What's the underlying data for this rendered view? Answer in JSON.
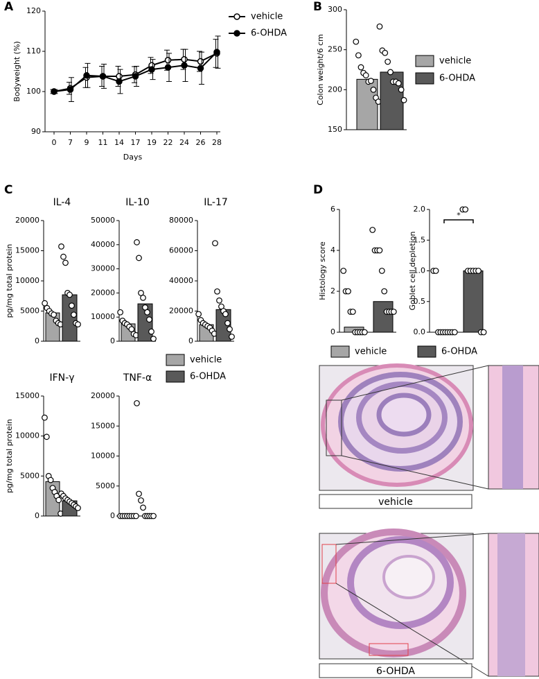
{
  "panels": [
    "A",
    "B",
    "C",
    "D"
  ],
  "images": [
    {
      "label": "vehicle"
    },
    {
      "label": "6-OHDA"
    }
  ],
  "chart_data": [
    {
      "type": "line",
      "ylabel": "Bodyweight (%)",
      "xlabel": "Days",
      "categories": [
        0,
        7,
        9,
        11,
        14,
        17,
        19,
        22,
        24,
        26,
        28
      ],
      "ylim": [
        90,
        120
      ],
      "yticks": [
        90,
        100,
        110,
        120
      ],
      "series": [
        {
          "name": "vehicle",
          "color": "#000000",
          "marker": "open",
          "values": [
            100,
            100.8,
            103.5,
            103.8,
            103.8,
            104.2,
            106.5,
            107.8,
            108,
            107.5,
            109.5
          ],
          "errors": [
            0.5,
            1.5,
            2.5,
            2.5,
            2.5,
            2,
            2,
            2.5,
            2.5,
            2.5,
            3.5
          ]
        },
        {
          "name": "6-OHDA",
          "color": "#000000",
          "marker": "filled",
          "values": [
            100,
            100.5,
            104,
            103.8,
            102.5,
            103.8,
            105.5,
            106,
            106.5,
            105.8,
            109.8
          ],
          "errors": [
            0.5,
            3,
            3,
            3,
            3,
            2.5,
            2.5,
            3.5,
            4,
            4,
            4
          ]
        }
      ]
    },
    {
      "type": "bar_scatter",
      "ylabel": "Colon weight/6 cm",
      "ylim": [
        150,
        300
      ],
      "yticks": [
        150,
        200,
        250,
        300
      ],
      "legend": true,
      "series": [
        {
          "name": "vehicle",
          "color": "#a6a6a6",
          "value": 213,
          "points": [
            260,
            243,
            228,
            221,
            218,
            210,
            211,
            200,
            190,
            185
          ]
        },
        {
          "name": "6-OHDA",
          "color": "#595959",
          "value": 222,
          "points": [
            279,
            249,
            246,
            235,
            222,
            210,
            210,
            208,
            200,
            187
          ]
        }
      ]
    },
    {
      "type": "bar_scatter",
      "title": "IL-4",
      "ylabel": "pg/mg total protein",
      "ylim": [
        0,
        20000
      ],
      "yticks": [
        0,
        5000,
        10000,
        15000,
        20000
      ],
      "legend": true,
      "series": [
        {
          "name": "vehicle",
          "color": "#a6a6a6",
          "value": 4700,
          "points": [
            6300,
            5500,
            5000,
            4600,
            4400,
            3400,
            3000,
            2800
          ]
        },
        {
          "name": "6-OHDA",
          "color": "#595959",
          "value": 7700,
          "points": [
            15700,
            14000,
            13000,
            8000,
            7700,
            5900,
            4400,
            3000,
            2800
          ]
        }
      ]
    },
    {
      "type": "bar_scatter",
      "title": "IL-10",
      "ylim": [
        0,
        50000
      ],
      "yticks": [
        0,
        10000,
        20000,
        30000,
        40000,
        50000
      ],
      "series": [
        {
          "name": "vehicle",
          "color": "#a6a6a6",
          "value": 7200,
          "points": [
            12000,
            8500,
            7500,
            7000,
            6000,
            5000,
            3000,
            2500
          ]
        },
        {
          "name": "6-OHDA",
          "color": "#595959",
          "value": 15500,
          "points": [
            41000,
            34500,
            20000,
            18000,
            14000,
            12000,
            9000,
            4000,
            1000
          ]
        }
      ]
    },
    {
      "type": "bar_scatter",
      "title": "IL-17",
      "ylim": [
        0,
        80000
      ],
      "yticks": [
        0,
        20000,
        40000,
        60000,
        80000
      ],
      "series": [
        {
          "name": "vehicle",
          "color": "#a6a6a6",
          "value": 11000,
          "points": [
            18000,
            14000,
            12000,
            11000,
            10000,
            9000,
            7000,
            5000
          ]
        },
        {
          "name": "6-OHDA",
          "color": "#595959",
          "value": 21000,
          "points": [
            65000,
            33000,
            27000,
            23000,
            20000,
            18000,
            12000,
            8000,
            3000
          ]
        }
      ]
    },
    {
      "type": "bar_scatter",
      "title": "IFN-γ",
      "ylabel": "pg/mg total protein",
      "ylim": [
        0,
        15000
      ],
      "yticks": [
        0,
        5000,
        10000,
        15000
      ],
      "series": [
        {
          "name": "vehicle",
          "color": "#a6a6a6",
          "value": 4300,
          "points": [
            12300,
            9900,
            5000,
            4500,
            3500,
            3000,
            2500,
            2000,
            300
          ]
        },
        {
          "name": "6-OHDA",
          "color": "#595959",
          "value": 1900,
          "points": [
            2800,
            2500,
            2200,
            2000,
            1800,
            1600,
            1400,
            1200,
            1000
          ]
        }
      ]
    },
    {
      "type": "bar_scatter",
      "title": "TNF-α",
      "ylim": [
        0,
        20000
      ],
      "yticks": [
        0,
        5000,
        10000,
        15000,
        20000
      ],
      "series": [
        {
          "name": "vehicle",
          "color": "#a6a6a6",
          "value": 0,
          "points": [
            0,
            0,
            0,
            0,
            0,
            0,
            0,
            0
          ]
        },
        {
          "name": "6-OHDA",
          "color": "#595959",
          "value": 0,
          "points": [
            18800,
            3700,
            2600,
            1400,
            0,
            0,
            0,
            0,
            0
          ]
        }
      ]
    },
    {
      "type": "bar_scatter",
      "ylabel": "Histology score",
      "ylim": [
        0,
        6
      ],
      "yticks": [
        0,
        2,
        4,
        6
      ],
      "legend": true,
      "series": [
        {
          "name": "vehicle",
          "color": "#a6a6a6",
          "value": 0.25,
          "points": [
            3,
            2,
            2,
            1,
            1,
            0,
            0,
            0,
            0,
            0
          ]
        },
        {
          "name": "6-OHDA",
          "color": "#595959",
          "value": 1.5,
          "points": [
            5,
            4,
            4,
            4,
            3,
            2,
            1,
            1,
            1,
            1
          ]
        }
      ]
    },
    {
      "type": "bar_scatter",
      "ylabel": "Goblet cell depletion",
      "ylim": [
        0,
        2
      ],
      "yticks": [
        {
          "value": 0,
          "label": "0.0"
        },
        0.5,
        {
          "value": 1,
          "label": "1.0"
        },
        1.5,
        {
          "value": 2,
          "label": "2.0"
        }
      ],
      "annotation": "*",
      "series": [
        {
          "name": "vehicle",
          "color": "#a6a6a6",
          "value": 0,
          "points": [
            1,
            1,
            0,
            0,
            0,
            0,
            0,
            0,
            0,
            0
          ]
        },
        {
          "name": "6-OHDA",
          "color": "#595959",
          "value": 1,
          "points": [
            2,
            2,
            1,
            1,
            1,
            1,
            1,
            0,
            0
          ]
        }
      ]
    }
  ]
}
